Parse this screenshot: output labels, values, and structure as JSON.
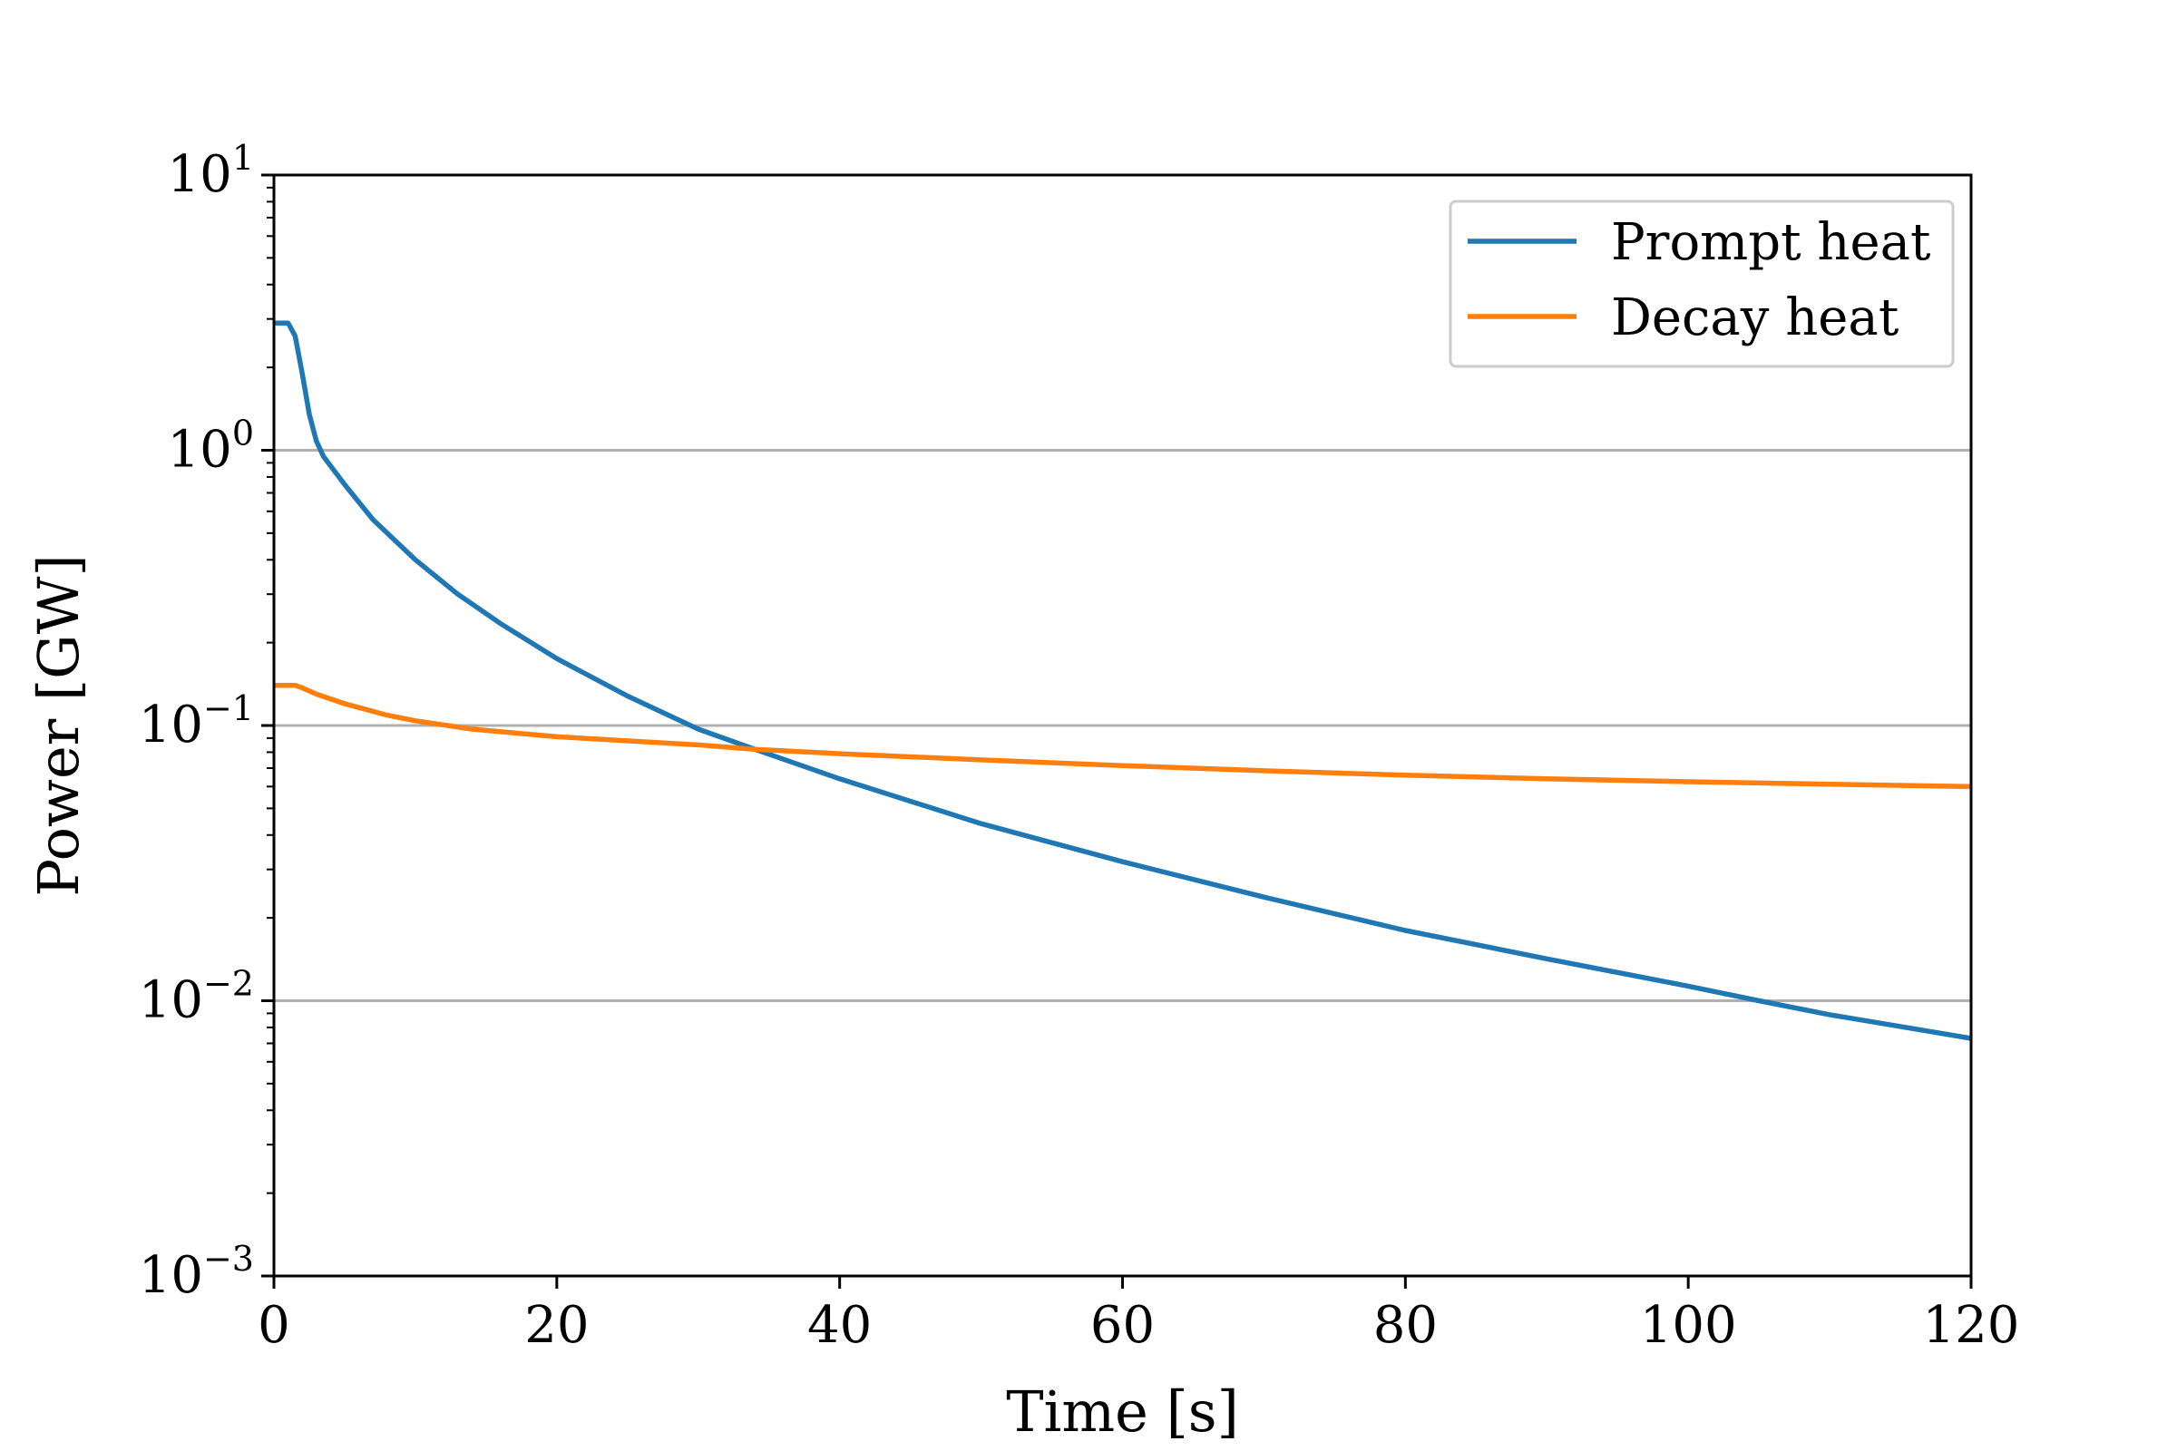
{
  "chart_data": {
    "type": "line",
    "title": "",
    "xlabel": "Time [s]",
    "ylabel": "Power [GW]",
    "xlim": [
      0,
      120
    ],
    "ylim": [
      0.001,
      10
    ],
    "yscale": "log",
    "grid": "horizontal major lines only",
    "legend_position": "top-right",
    "xticks": [
      {
        "value": 0,
        "label": "0"
      },
      {
        "value": 20,
        "label": "20"
      },
      {
        "value": 40,
        "label": "40"
      },
      {
        "value": 60,
        "label": "60"
      },
      {
        "value": 80,
        "label": "80"
      },
      {
        "value": 100,
        "label": "100"
      },
      {
        "value": 120,
        "label": "120"
      }
    ],
    "yticks": [
      {
        "value": 0.001,
        "base": "10",
        "exp": "−3"
      },
      {
        "value": 0.01,
        "base": "10",
        "exp": "−2"
      },
      {
        "value": 0.1,
        "base": "10",
        "exp": "−1"
      },
      {
        "value": 1,
        "base": "10",
        "exp": "0"
      },
      {
        "value": 10,
        "base": "10",
        "exp": "1"
      }
    ],
    "series": [
      {
        "name": "Prompt heat",
        "color": "#1f77b4",
        "x": [
          0,
          1,
          1.5,
          2,
          2.5,
          3,
          3.5,
          5,
          7,
          10,
          13,
          16,
          20,
          25,
          30,
          34,
          40,
          50,
          60,
          70,
          80,
          90,
          100,
          105,
          110,
          120
        ],
        "y": [
          2.9,
          2.9,
          2.6,
          1.9,
          1.35,
          1.08,
          0.95,
          0.75,
          0.56,
          0.4,
          0.3,
          0.235,
          0.175,
          0.128,
          0.097,
          0.082,
          0.064,
          0.044,
          0.032,
          0.0238,
          0.018,
          0.0142,
          0.0113,
          0.01,
          0.0089,
          0.0073
        ]
      },
      {
        "name": "Decay heat",
        "color": "#ff7f0e",
        "x": [
          0,
          1,
          1.5,
          2,
          3,
          5,
          8,
          10,
          14,
          20,
          30,
          34,
          40,
          50,
          60,
          70,
          80,
          90,
          100,
          110,
          120
        ],
        "y": [
          0.14,
          0.14,
          0.14,
          0.137,
          0.13,
          0.12,
          0.109,
          0.104,
          0.097,
          0.091,
          0.085,
          0.082,
          0.079,
          0.075,
          0.0715,
          0.0685,
          0.066,
          0.064,
          0.0625,
          0.0612,
          0.06
        ]
      }
    ]
  }
}
